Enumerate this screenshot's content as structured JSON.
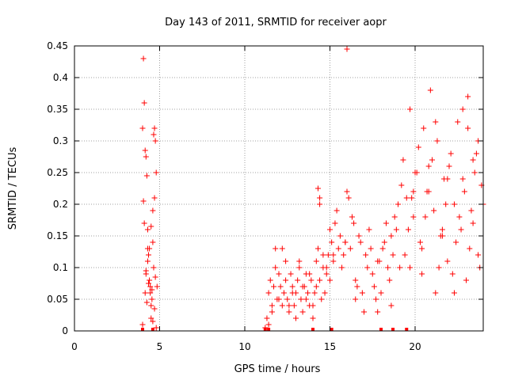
{
  "chart_data": {
    "type": "scatter",
    "title": "Day 143 of 2011, SRMTID for receiver aopr",
    "xlabel": "GPS time / hours",
    "ylabel": "SRMTID / TECUs",
    "xlim": [
      0,
      24
    ],
    "ylim": [
      0,
      0.45
    ],
    "xticks": [
      0,
      5,
      10,
      15,
      20
    ],
    "xtick_labels": [
      "0",
      "5",
      "10",
      "15",
      "20"
    ],
    "yticks": [
      0,
      0.05,
      0.1,
      0.15,
      0.2,
      0.25,
      0.3,
      0.35,
      0.4,
      0.45
    ],
    "ytick_labels": [
      "0",
      "0.05",
      "0.1",
      "0.15",
      "0.2",
      "0.25",
      "0.3",
      "0.35",
      "0.4",
      "0.45"
    ],
    "grid": true,
    "marker": "+",
    "marker_color": "#ff0000",
    "series": [
      {
        "name": "SRMTID",
        "x": [
          4.05,
          4.1,
          4.0,
          4.15,
          4.2,
          4.25,
          4.05,
          4.1,
          4.3,
          4.35,
          4.2,
          4.4,
          4.45,
          4.5,
          4.55,
          4.6,
          4.65,
          4.7,
          4.75,
          4.8,
          4.5,
          4.6,
          4.3,
          4.2,
          4.35,
          4.45,
          4.55,
          4.15,
          4.25,
          4.7,
          4.65,
          4.4,
          4.75,
          4.0,
          4.8,
          4.85,
          4.5,
          4.6,
          4.3,
          4.7,
          11.2,
          11.3,
          11.4,
          11.5,
          11.6,
          11.7,
          11.8,
          11.9,
          12.0,
          12.1,
          12.2,
          12.3,
          12.4,
          12.5,
          12.6,
          12.7,
          12.8,
          12.9,
          13.0,
          13.1,
          13.2,
          13.3,
          13.4,
          13.5,
          13.6,
          13.7,
          13.8,
          13.9,
          14.0,
          14.1,
          14.2,
          14.3,
          14.4,
          14.5,
          14.6,
          14.7,
          14.8,
          14.9,
          15.0,
          15.1,
          11.4,
          11.6,
          11.8,
          12.0,
          12.2,
          12.4,
          12.6,
          12.8,
          13.0,
          13.2,
          13.4,
          13.6,
          13.8,
          14.0,
          14.2,
          14.4,
          14.6,
          14.8,
          15.0,
          15.2,
          15.3,
          15.5,
          15.7,
          15.9,
          16.1,
          16.3,
          16.5,
          16.7,
          16.9,
          17.1,
          17.3,
          17.5,
          17.7,
          17.9,
          18.1,
          18.3,
          18.5,
          18.7,
          18.9,
          19.1,
          15.4,
          15.6,
          15.8,
          16.0,
          16.2,
          16.4,
          16.6,
          16.8,
          17.0,
          17.2,
          17.4,
          17.6,
          17.8,
          18.0,
          18.2,
          18.4,
          18.6,
          18.8,
          19.0,
          19.2,
          19.3,
          19.5,
          19.7,
          19.9,
          20.1,
          20.3,
          20.5,
          20.7,
          20.9,
          21.1,
          21.3,
          21.5,
          21.7,
          21.9,
          22.1,
          22.3,
          22.5,
          22.7,
          22.9,
          23.1,
          23.3,
          23.5,
          23.7,
          23.9,
          19.4,
          19.6,
          19.8,
          20.0,
          20.2,
          20.4,
          20.6,
          20.8,
          21.0,
          21.2,
          21.4,
          21.6,
          21.8,
          22.0,
          22.2,
          22.4,
          22.6,
          22.8,
          23.0,
          23.2,
          23.4,
          23.6,
          23.8,
          24.0,
          16.0,
          14.3,
          14.4,
          19.7,
          20.4,
          21.2,
          21.6,
          22.8,
          23.1,
          23.4,
          23.7,
          22.3,
          21.9,
          20.8,
          19.9,
          18.6,
          17.8,
          16.5,
          15.9,
          15.2
        ],
        "y": [
          0.43,
          0.36,
          0.32,
          0.285,
          0.275,
          0.245,
          0.205,
          0.17,
          0.13,
          0.12,
          0.095,
          0.08,
          0.06,
          0.04,
          0.05,
          0.19,
          0.31,
          0.32,
          0.3,
          0.25,
          0.165,
          0.14,
          0.11,
          0.09,
          0.075,
          0.07,
          0.065,
          0.06,
          0.045,
          0.035,
          0.1,
          0.13,
          0.085,
          0.01,
          0.005,
          0.07,
          0.02,
          0.015,
          0.16,
          0.21,
          0.005,
          0.02,
          0.06,
          0.08,
          0.04,
          0.07,
          0.13,
          0.05,
          0.09,
          0.07,
          0.04,
          0.06,
          0.11,
          0.05,
          0.03,
          0.09,
          0.07,
          0.04,
          0.06,
          0.08,
          0.1,
          0.05,
          0.03,
          0.07,
          0.09,
          0.06,
          0.04,
          0.08,
          0.02,
          0.06,
          0.11,
          0.13,
          0.08,
          0.05,
          0.1,
          0.06,
          0.09,
          0.12,
          0.08,
          0.14,
          0.01,
          0.03,
          0.1,
          0.05,
          0.13,
          0.08,
          0.04,
          0.06,
          0.02,
          0.11,
          0.07,
          0.05,
          0.09,
          0.04,
          0.07,
          0.21,
          0.12,
          0.1,
          0.16,
          0.11,
          0.17,
          0.13,
          0.1,
          0.14,
          0.21,
          0.18,
          0.08,
          0.15,
          0.06,
          0.12,
          0.16,
          0.09,
          0.05,
          0.11,
          0.13,
          0.17,
          0.08,
          0.12,
          0.16,
          0.1,
          0.19,
          0.15,
          0.12,
          0.22,
          0.13,
          0.17,
          0.07,
          0.14,
          0.03,
          0.1,
          0.13,
          0.07,
          0.11,
          0.06,
          0.14,
          0.1,
          0.15,
          0.18,
          0.2,
          0.23,
          0.27,
          0.21,
          0.35,
          0.18,
          0.25,
          0.14,
          0.32,
          0.22,
          0.38,
          0.19,
          0.3,
          0.15,
          0.24,
          0.11,
          0.28,
          0.2,
          0.33,
          0.16,
          0.22,
          0.37,
          0.19,
          0.25,
          0.12,
          0.23,
          0.12,
          0.16,
          0.21,
          0.25,
          0.29,
          0.13,
          0.18,
          0.22,
          0.27,
          0.33,
          0.1,
          0.16,
          0.2,
          0.26,
          0.09,
          0.14,
          0.18,
          0.24,
          0.08,
          0.13,
          0.17,
          0.28,
          0.1,
          0.2,
          0.445,
          0.225,
          0.2,
          0.1,
          0.09,
          0.06,
          0.15,
          0.35,
          0.32,
          0.27,
          0.3,
          0.06,
          0.24,
          0.26,
          0.22,
          0.04,
          0.03,
          0.05,
          0.14,
          0.12
        ]
      }
    ],
    "zero_markers_x": [
      4.0,
      4.6,
      11.2,
      11.4,
      14.0,
      15.1,
      18.0,
      18.7,
      19.5
    ]
  }
}
